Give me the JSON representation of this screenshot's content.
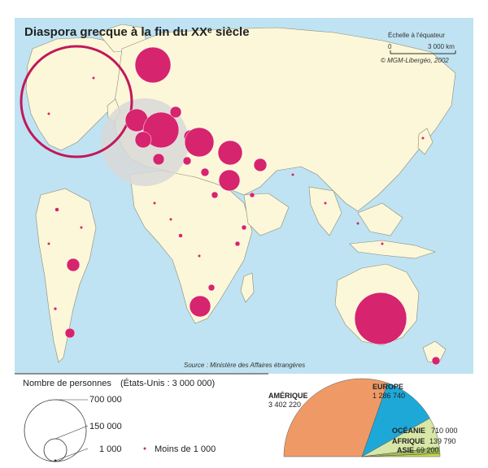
{
  "map": {
    "title": "Diaspora grecque à la fin du XXᵉ siècle",
    "scale_label": "Échelle à l'équateur",
    "scale_min": "0",
    "scale_max": "3 000 km",
    "copyright": "© MGM-Libergéo, 2002",
    "source": "Source : Ministère des Affaires étrangères",
    "colors": {
      "sea": "#bfe3f2",
      "land": "#fbf7d8",
      "circle": "#d6246e",
      "greece_zone": "#d8d8d8"
    }
  },
  "legend": {
    "title": "Nombre de personnes",
    "title_note": "(États-Unis : 3 000 000)",
    "v1": "700 000",
    "v2": "150 000",
    "v3": "1 000",
    "v4": "Moins de 1 000"
  },
  "chart_data": {
    "type": "pie",
    "categories": [
      "AMÉRIQUE",
      "EUROPE",
      "OCÉANIE",
      "AFRIQUE",
      "ASIE"
    ],
    "values": [
      3402220,
      1286740,
      710000,
      139790,
      69200
    ],
    "labels": [
      "3 402 220",
      "1 286 740",
      "710 000",
      "139 790",
      "69 200"
    ],
    "colors": [
      "#ef9a66",
      "#1ea8d8",
      "#d8e6a6",
      "#9fbd58",
      "#c8d84a"
    ]
  }
}
